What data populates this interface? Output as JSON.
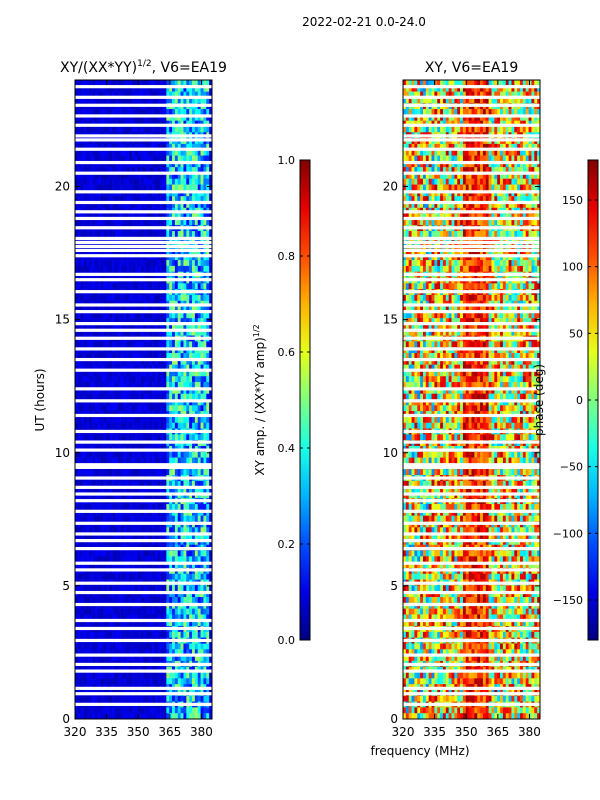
{
  "figure": {
    "suptitle": "2022-02-21 0.0-24.0",
    "xlabel": "frequency (MHz)"
  },
  "chart_data": [
    {
      "type": "heatmap",
      "title_text": "XY/(XX*YY)",
      "title_sup": "1/2",
      "title_suffix": ", V6=EA19",
      "xlabel": "",
      "ylabel": "UT (hours)",
      "xlim": [
        320,
        385
      ],
      "ylim": [
        0,
        24
      ],
      "xticks": [
        320,
        335,
        350,
        365,
        380
      ],
      "yticks": [
        0,
        5,
        10,
        15,
        20
      ],
      "signal_band_mhz": [
        363,
        383
      ],
      "colorbar": {
        "label_text": "XY amp. / (XX*YY amp)",
        "label_sup": "1/2",
        "range": [
          0.0,
          1.0
        ],
        "ticks": [
          "0.0",
          "0.2",
          "0.4",
          "0.6",
          "0.8",
          "1.0"
        ],
        "tick_values": [
          0.0,
          0.2,
          0.4,
          0.6,
          0.8,
          1.0
        ],
        "colormap": "jet"
      }
    },
    {
      "type": "heatmap",
      "title_text": "XY, V6=EA19",
      "xlabel": "frequency (MHz)",
      "ylabel": "",
      "xlim": [
        320,
        385
      ],
      "ylim": [
        0,
        24
      ],
      "xticks": [
        320,
        335,
        350,
        365,
        380
      ],
      "yticks": [
        0,
        5,
        10,
        15,
        20
      ],
      "colorbar": {
        "label_text": "phase (deg)",
        "range": [
          -180,
          180
        ],
        "ticks": [
          "150",
          "100",
          "50",
          "0",
          "−50",
          "−100",
          "−150"
        ],
        "tick_values": [
          150,
          100,
          50,
          0,
          -50,
          -100,
          -150
        ],
        "colormap": "jet"
      }
    }
  ],
  "flagged_ut_hours": [
    0.55,
    0.95,
    1.15,
    1.8,
    2.05,
    2.4,
    2.95,
    3.4,
    3.7,
    4.3,
    4.75,
    5.1,
    5.6,
    5.85,
    6.4,
    6.7,
    6.95,
    7.35,
    7.8,
    8.2,
    8.45,
    8.7,
    9.05,
    9.45,
    9.55,
    10.1,
    10.4,
    10.8,
    11.4,
    11.95,
    12.4,
    13.1,
    13.5,
    13.9,
    14.3,
    14.6,
    14.85,
    15.3,
    15.55,
    16.05,
    16.5,
    16.7,
    17.4,
    17.6,
    17.75,
    17.9,
    18.05,
    18.45,
    18.8,
    19.05,
    19.4,
    19.8,
    20.5,
    20.9,
    21.4,
    21.75,
    21.9,
    22.3,
    22.65,
    23.05,
    23.35,
    23.75
  ]
}
